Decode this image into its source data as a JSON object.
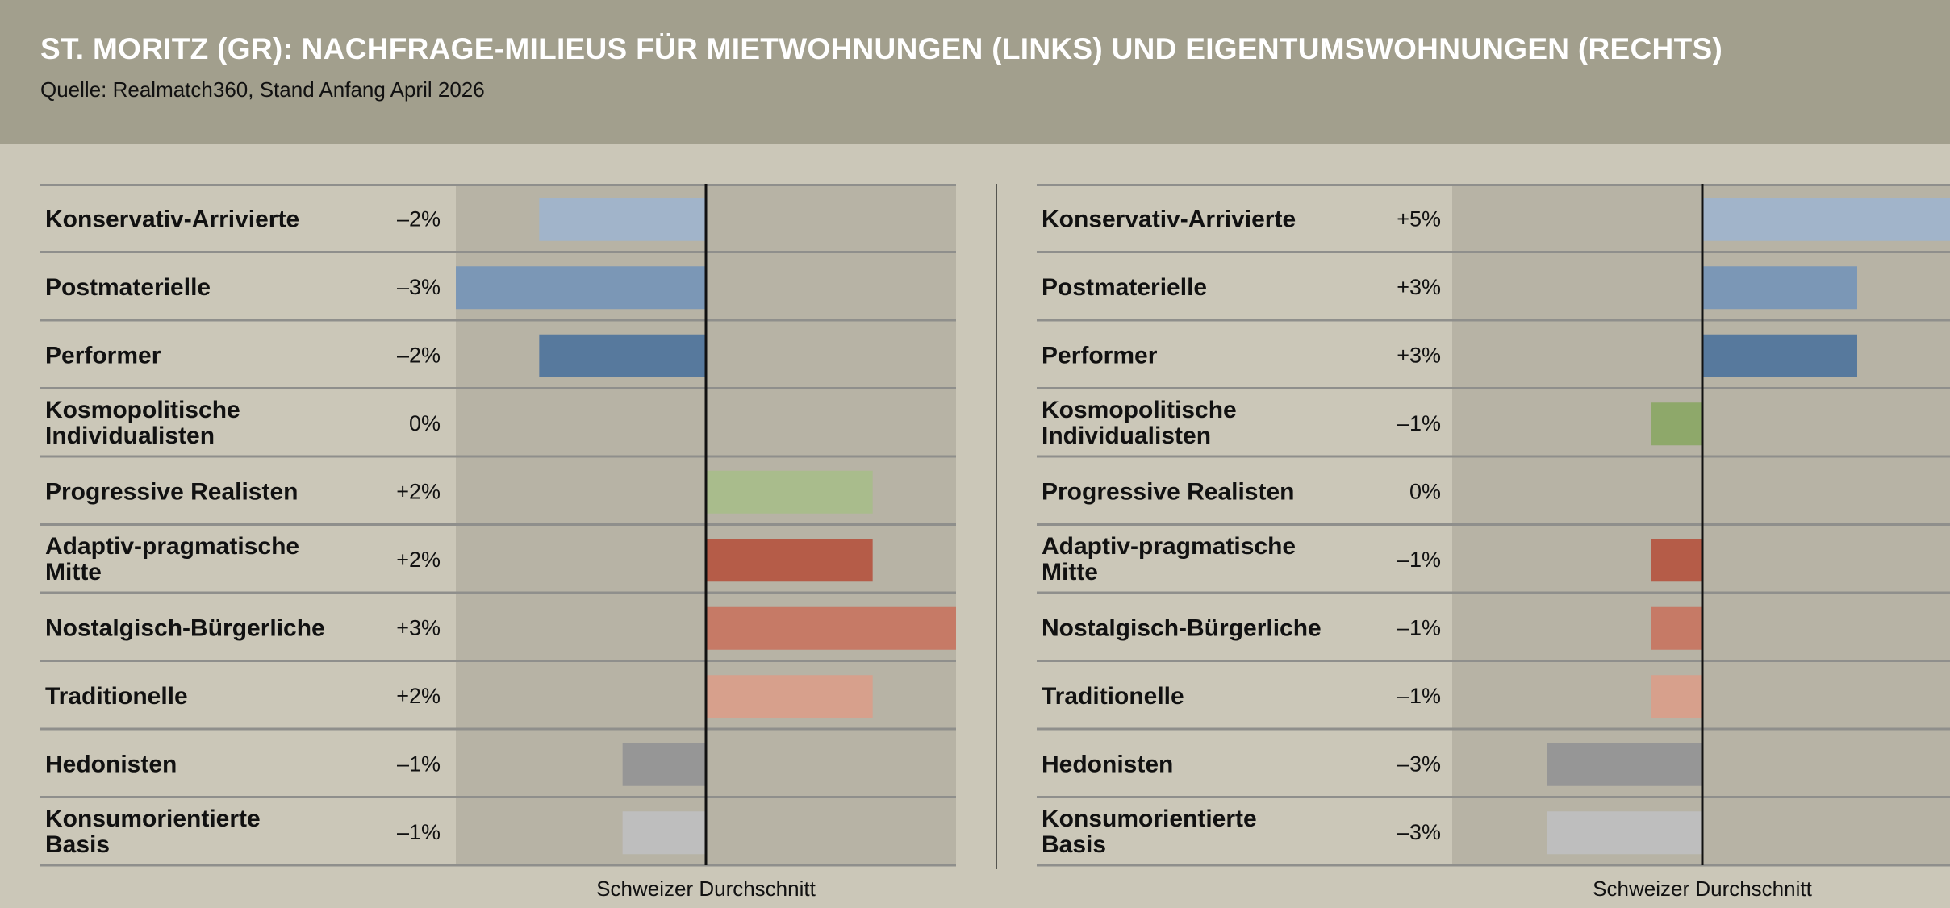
{
  "header": {
    "title": "ST. MORITZ (GR): NACHFRAGE-MILIEUS FÜR MIETWOHNUNGEN (LINKS) UND EIGENTUMSWOHNUNGEN (RECHTS)",
    "subtitle": "Quelle: Realmatch360, Stand Anfang April 2026"
  },
  "colors": {
    "header_bg": "#a29f8d",
    "page_bg": "#cbc7b8",
    "plot_bg": "#b7b3a5",
    "row_line": "#8f8f8c",
    "axis_line": "#111111"
  },
  "chart_data": [
    {
      "type": "bar",
      "orientation": "horizontal",
      "axis_caption": "Schweizer Durchschnitt",
      "xlim": [
        -3,
        3
      ],
      "categories": [
        [
          "Konservativ-Arrivierte"
        ],
        [
          "Postmaterielle"
        ],
        [
          "Performer"
        ],
        [
          "Kosmopolitische",
          "Individualisten"
        ],
        [
          "Progressive Realisten"
        ],
        [
          "Adaptiv-pragmatische",
          "Mitte"
        ],
        [
          "Nostalgisch-Bürgerliche"
        ],
        [
          "Traditionelle"
        ],
        [
          "Hedonisten"
        ],
        [
          "Konsumorientierte",
          "Basis"
        ]
      ],
      "values": [
        -2,
        -3,
        -2,
        0,
        2,
        2,
        3,
        2,
        -1,
        -1
      ],
      "value_labels": [
        "–2%",
        "–3%",
        "–2%",
        "0%",
        "+2%",
        "+2%",
        "+3%",
        "+2%",
        "–1%",
        "–1%"
      ],
      "bar_colors": [
        "#a1b4ca",
        "#7b97b6",
        "#57799d",
        "#8ea86a",
        "#a9bc8c",
        "#b55c48",
        "#c67a66",
        "#d7a08c",
        "#969696",
        "#bebebe"
      ]
    },
    {
      "type": "bar",
      "orientation": "horizontal",
      "axis_caption": "Schweizer Durchschnitt",
      "xlim": [
        -3,
        3
      ],
      "categories": [
        [
          "Konservativ-Arrivierte"
        ],
        [
          "Postmaterielle"
        ],
        [
          "Performer"
        ],
        [
          "Kosmopolitische",
          "Individualisten"
        ],
        [
          "Progressive Realisten"
        ],
        [
          "Adaptiv-pragmatische",
          "Mitte"
        ],
        [
          "Nostalgisch-Bürgerliche"
        ],
        [
          "Traditionelle"
        ],
        [
          "Hedonisten"
        ],
        [
          "Konsumorientierte",
          "Basis"
        ]
      ],
      "values": [
        5,
        3,
        3,
        -1,
        0,
        -1,
        -1,
        -1,
        -3,
        -3
      ],
      "value_labels": [
        "+5%",
        "+3%",
        "+3%",
        "–1%",
        "0%",
        "–1%",
        "–1%",
        "–1%",
        "–3%",
        "–3%"
      ],
      "bar_colors": [
        "#a1b4ca",
        "#7b97b6",
        "#57799d",
        "#8ea86a",
        "#a9bc8c",
        "#b55c48",
        "#c67a66",
        "#d7a08c",
        "#969696",
        "#bebebe"
      ]
    }
  ]
}
